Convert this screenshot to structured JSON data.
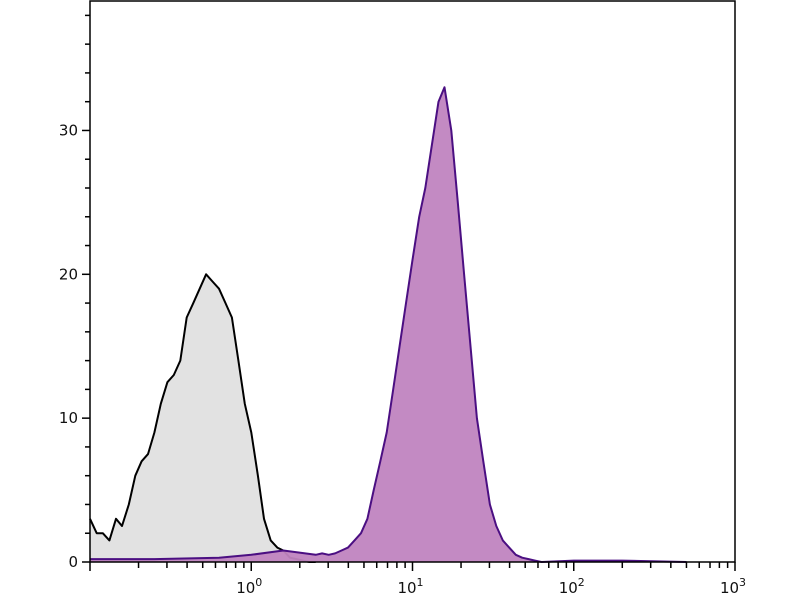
{
  "chart_data": {
    "type": "area",
    "title": "",
    "xlabel": "",
    "ylabel": "",
    "x_scale": "log",
    "xlim": [
      0.1,
      1000
    ],
    "ylim": [
      0,
      39
    ],
    "x_ticks": [
      {
        "base": "10",
        "exp": "0",
        "value": 1
      },
      {
        "base": "10",
        "exp": "1",
        "value": 10
      },
      {
        "base": "10",
        "exp": "2",
        "value": 100
      },
      {
        "base": "10",
        "exp": "3",
        "value": 1000
      }
    ],
    "y_ticks": [
      {
        "label": "0",
        "value": 0
      },
      {
        "label": "10",
        "value": 10
      },
      {
        "label": "20",
        "value": 20
      },
      {
        "label": "30",
        "value": 30
      }
    ],
    "grid": false,
    "series": [
      {
        "fill": "#e0e0e0",
        "stroke": "#000000",
        "x": [
          0.1,
          0.11,
          0.12,
          0.132,
          0.145,
          0.158,
          0.174,
          0.191,
          0.209,
          0.229,
          0.251,
          0.275,
          0.302,
          0.331,
          0.363,
          0.398,
          0.437,
          0.479,
          0.525,
          0.575,
          0.631,
          0.692,
          0.759,
          0.832,
          0.912,
          1.0,
          1.1,
          1.2,
          1.32,
          1.45,
          1.58,
          1.74,
          1.91,
          2.09,
          2.29,
          2.51
        ],
        "y": [
          3,
          2,
          2,
          1.5,
          3,
          2.5,
          4,
          6,
          7,
          7.5,
          9,
          11,
          12.5,
          13,
          14,
          17,
          18,
          19,
          20,
          19.5,
          19,
          18,
          17,
          14,
          11,
          9,
          6,
          3,
          1.5,
          1,
          0.8,
          0.3,
          0.2,
          0.1,
          0,
          0
        ]
      },
      {
        "fill": "#c084c0",
        "stroke": "#4b0f82",
        "x": [
          0.1,
          0.251,
          0.631,
          1.0,
          1.58,
          2.51,
          2.75,
          3.02,
          3.31,
          3.63,
          3.98,
          4.37,
          4.79,
          5.25,
          5.75,
          6.31,
          6.92,
          7.59,
          8.32,
          9.12,
          10.0,
          11.0,
          12.0,
          13.2,
          14.5,
          15.8,
          17.4,
          19.1,
          20.9,
          22.9,
          25.1,
          27.5,
          30.2,
          33.1,
          36.3,
          39.8,
          43.7,
          47.9,
          52.5,
          57.5,
          63.1,
          100,
          200,
          500
        ],
        "y": [
          0.2,
          0.2,
          0.3,
          0.5,
          0.8,
          0.5,
          0.6,
          0.5,
          0.6,
          0.8,
          1,
          1.5,
          2,
          3,
          5,
          7,
          9,
          12,
          15,
          18,
          21,
          24,
          26,
          29,
          32,
          33,
          30,
          25,
          20,
          15,
          10,
          7,
          4,
          2.5,
          1.5,
          1,
          0.5,
          0.3,
          0.2,
          0.1,
          0,
          0.1,
          0.1,
          0
        ]
      }
    ]
  }
}
